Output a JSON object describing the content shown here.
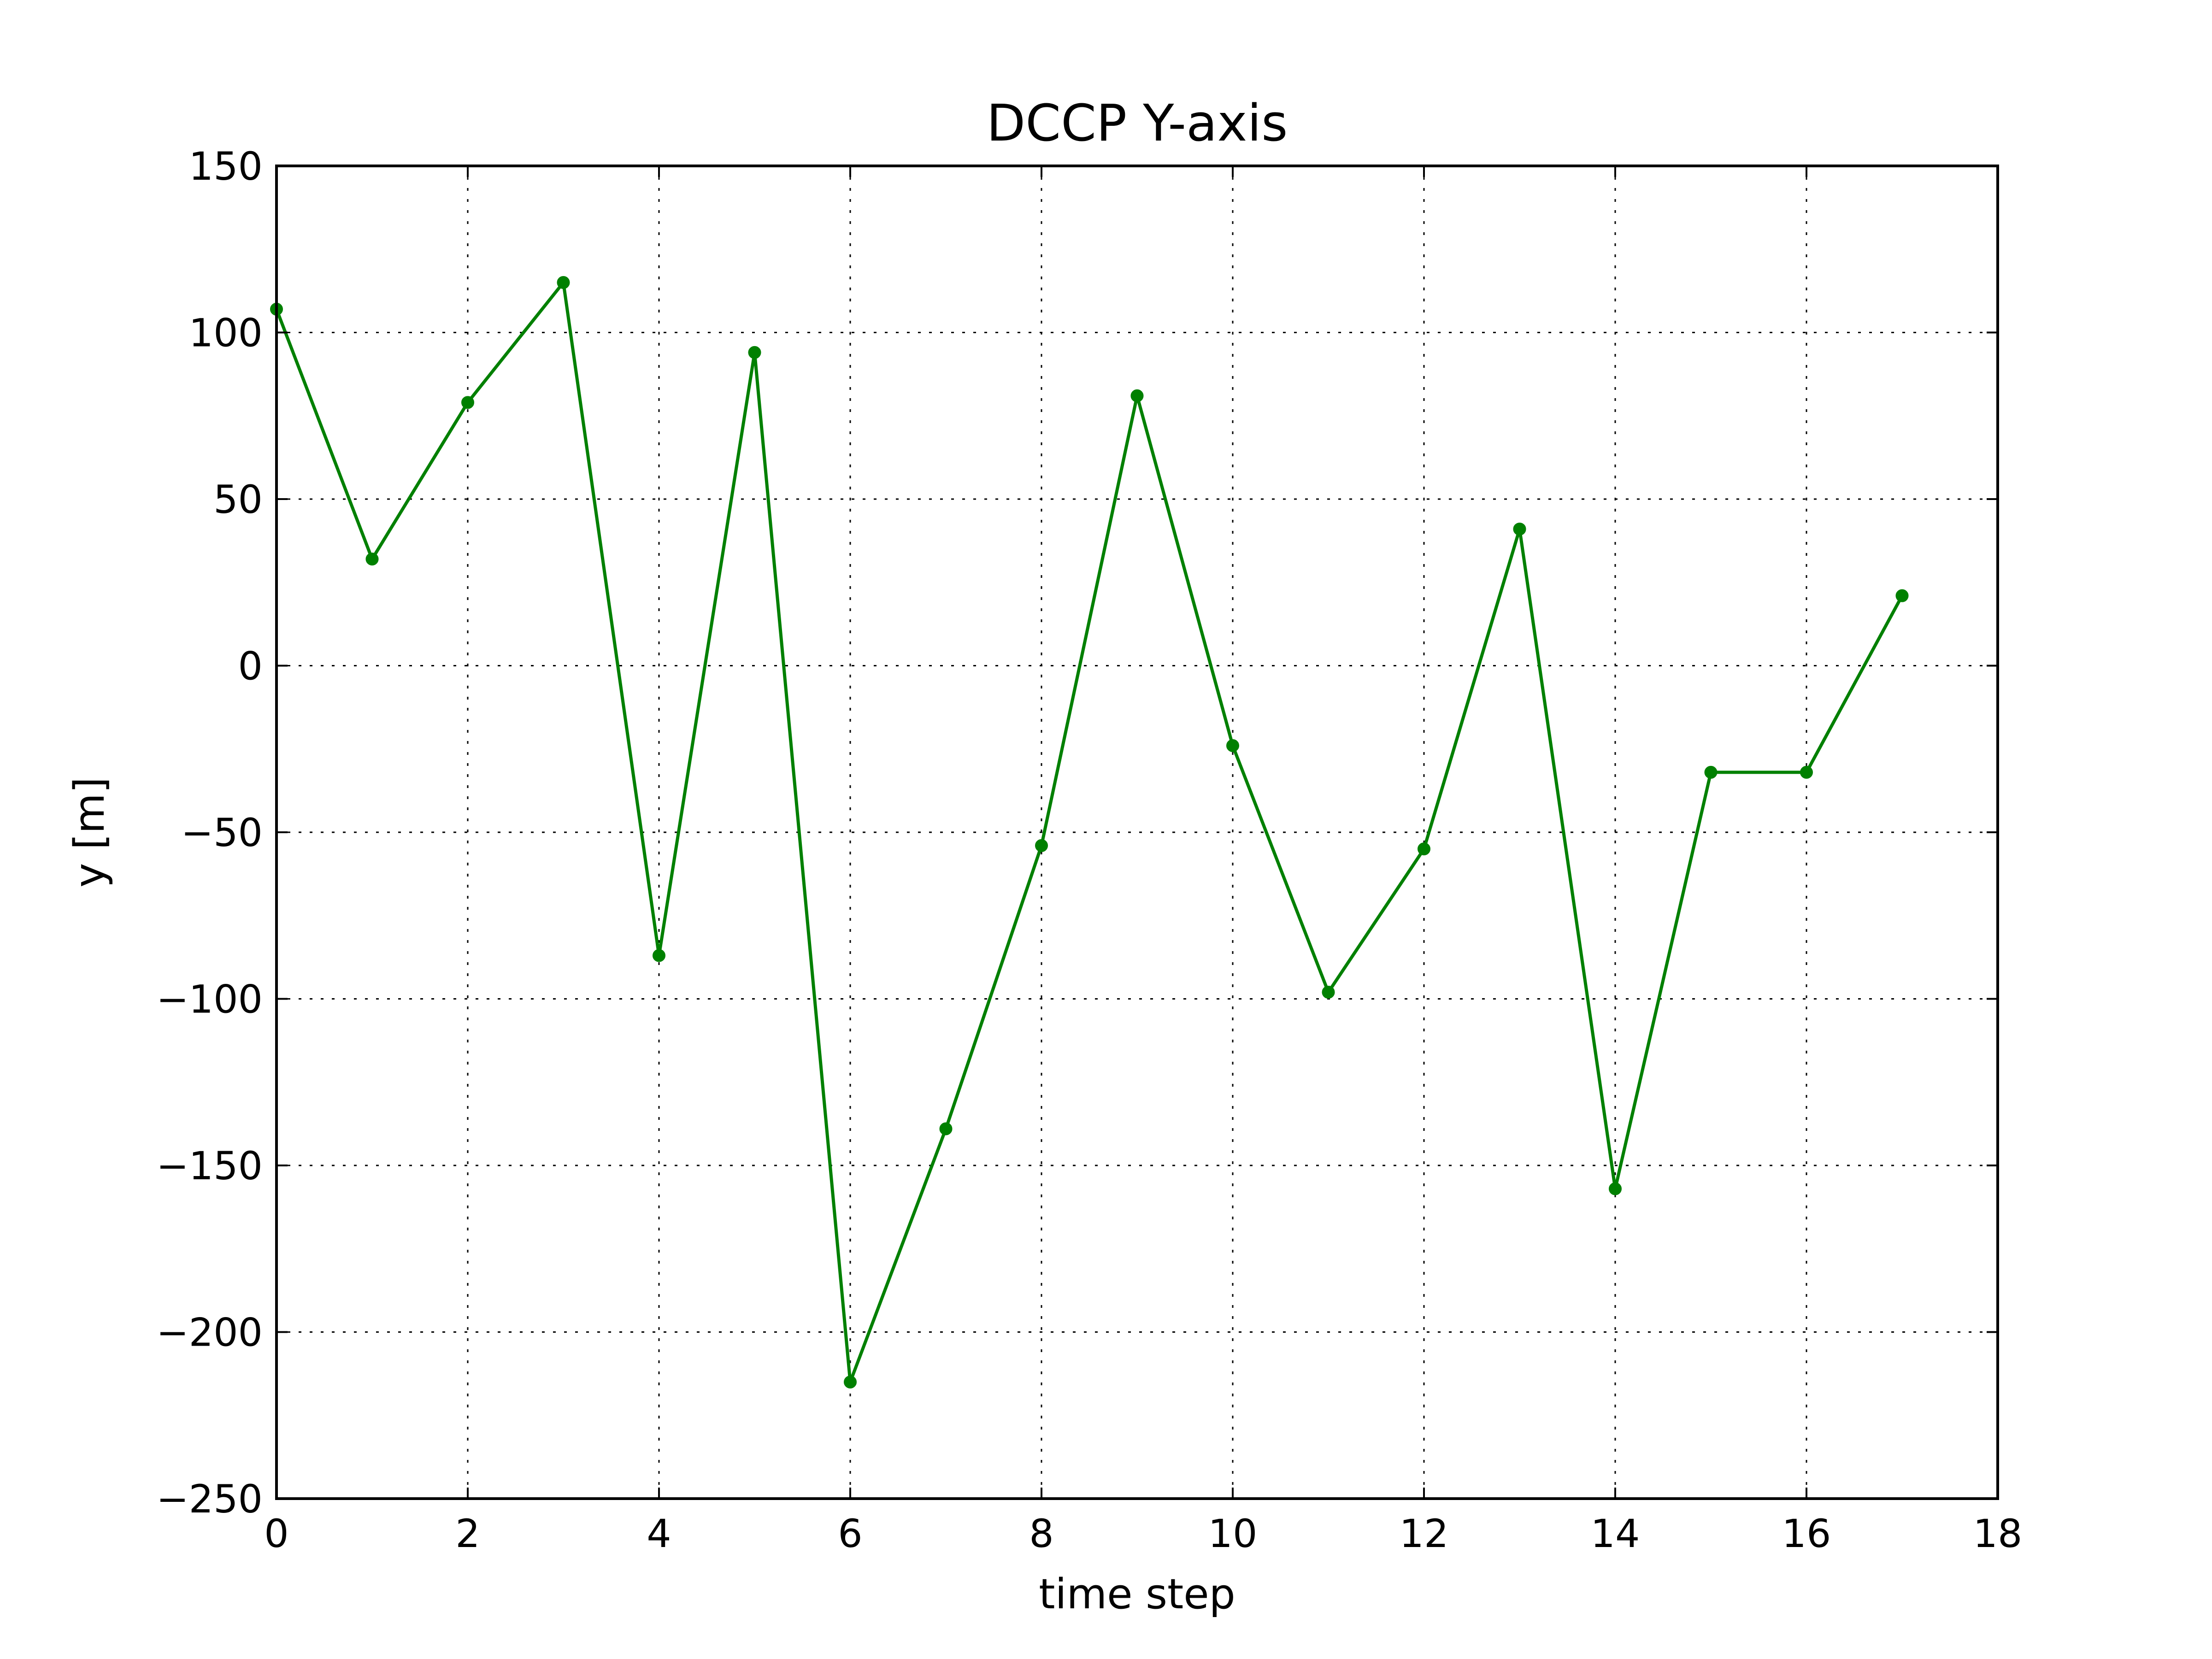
{
  "chart_data": {
    "type": "line",
    "title": "DCCP Y-axis",
    "xlabel": "time step",
    "ylabel": "y [m]",
    "xlim": [
      0,
      18
    ],
    "ylim": [
      -250,
      150
    ],
    "xticks": [
      0,
      2,
      4,
      6,
      8,
      10,
      12,
      14,
      16,
      18
    ],
    "yticks": [
      150,
      100,
      50,
      0,
      -50,
      -100,
      -150,
      -200,
      -250
    ],
    "xtick_labels": [
      "0",
      "2",
      "4",
      "6",
      "8",
      "10",
      "12",
      "14",
      "16",
      "18"
    ],
    "ytick_labels": [
      "150",
      "100",
      "50",
      "0",
      "−50",
      "−100",
      "−150",
      "−200",
      "−250"
    ],
    "grid": true,
    "legend": "none",
    "series": [
      {
        "color": "#008000",
        "marker": "circle",
        "x": [
          0,
          1,
          2,
          3,
          4,
          5,
          6,
          7,
          8,
          9,
          10,
          11,
          12,
          13,
          14,
          15,
          16,
          17
        ],
        "y": [
          107,
          32,
          79,
          115,
          -87,
          94,
          -215,
          -139,
          -54,
          81,
          -24,
          -98,
          -55,
          41,
          -157,
          -32,
          -32,
          21
        ]
      }
    ]
  }
}
